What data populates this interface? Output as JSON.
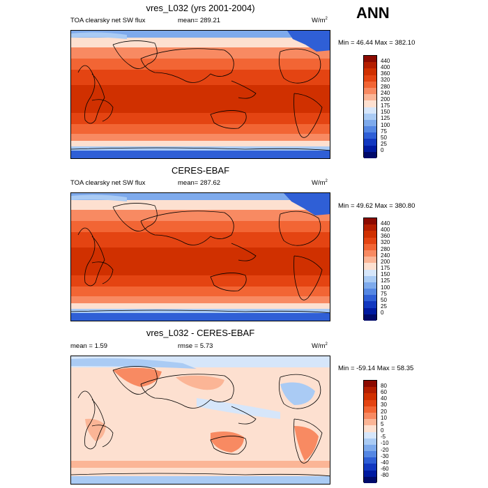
{
  "season": "ANN",
  "panels": [
    {
      "title": "vres_L032 (yrs 2001-2004)",
      "left_label": "TOA clearsky net SW flux",
      "stat_label": "mean=  289.21",
      "units": "W/m",
      "units_sup": "2",
      "minmax": "Min =  46.44 Max = 382.10",
      "colorbar_labels": [
        "440",
        "400",
        "360",
        "320",
        "280",
        "240",
        "200",
        "175",
        "150",
        "125",
        "100",
        "75",
        "50",
        "25",
        "0"
      ],
      "colors": [
        "#8c0a00",
        "#b41e00",
        "#d03000",
        "#e44412",
        "#f26534",
        "#f88a62",
        "#fbb596",
        "#fde0d0",
        "#d6e6fa",
        "#aacbf4",
        "#7eaaec",
        "#5587e3",
        "#2f5fd6",
        "#1238c0",
        "#001aa0",
        "#000a6a"
      ]
    },
    {
      "title": "CERES-EBAF",
      "left_label": "TOA clearsky net SW flux",
      "stat_label": "mean=  287.62",
      "units": "W/m",
      "units_sup": "2",
      "minmax": "Min =  49.62 Max = 380.80",
      "colorbar_labels": [
        "440",
        "400",
        "360",
        "320",
        "280",
        "240",
        "200",
        "175",
        "150",
        "125",
        "100",
        "75",
        "50",
        "25",
        "0"
      ],
      "colors": [
        "#8c0a00",
        "#b41e00",
        "#d03000",
        "#e44412",
        "#f26534",
        "#f88a62",
        "#fbb596",
        "#fde0d0",
        "#d6e6fa",
        "#aacbf4",
        "#7eaaec",
        "#5587e3",
        "#2f5fd6",
        "#1238c0",
        "#001aa0",
        "#000a6a"
      ]
    },
    {
      "title": "vres_L032 - CERES-EBAF",
      "left_label": "mean =   1.59",
      "stat_label": "rmse =   5.73",
      "units": "W/m",
      "units_sup": "2",
      "minmax": "Min = -59.14 Max =  58.35",
      "colorbar_labels": [
        "80",
        "60",
        "40",
        "30",
        "20",
        "10",
        "5",
        "0",
        "-5",
        "-10",
        "-20",
        "-30",
        "-40",
        "-60",
        "-80"
      ],
      "colors": [
        "#8c0a00",
        "#b41e00",
        "#d03000",
        "#e44412",
        "#f26534",
        "#f88a62",
        "#fbb596",
        "#fde0d0",
        "#d6e6fa",
        "#aacbf4",
        "#7eaaec",
        "#5587e3",
        "#2f5fd6",
        "#1238c0",
        "#001aa0",
        "#000a6a"
      ]
    }
  ]
}
